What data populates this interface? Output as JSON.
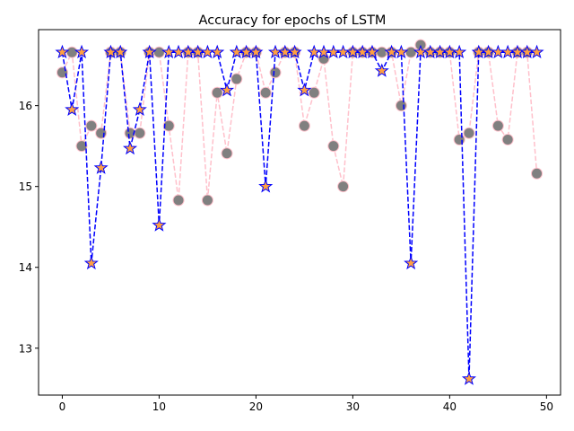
{
  "chart_data": {
    "type": "line",
    "title": "Accuracy for epochs of LSTM",
    "xlabel": "",
    "ylabel": "",
    "xlim": [
      -2.45,
      51.45
    ],
    "ylim": [
      12.42,
      16.94
    ],
    "xticks": [
      0,
      10,
      20,
      30,
      40,
      50
    ],
    "yticks": [
      13,
      14,
      15,
      16
    ],
    "grid": false,
    "legend": "none",
    "series": [
      {
        "style": "dashed-circle",
        "line_color": "#ffc0cb",
        "marker_face": "#808080",
        "marker_edge": "#ffc0cb",
        "x": [
          0,
          1,
          2,
          3,
          4,
          5,
          6,
          7,
          8,
          9,
          10,
          11,
          12,
          13,
          14,
          15,
          16,
          17,
          18,
          19,
          20,
          21,
          22,
          23,
          24,
          25,
          26,
          27,
          28,
          29,
          30,
          31,
          32,
          33,
          34,
          35,
          36,
          37,
          38,
          39,
          40,
          41,
          42,
          43,
          44,
          45,
          46,
          47,
          48,
          49
        ],
        "values": [
          16.41,
          16.66,
          15.5,
          15.75,
          15.66,
          16.66,
          16.66,
          15.66,
          15.66,
          16.66,
          16.66,
          15.75,
          14.83,
          16.66,
          16.66,
          14.83,
          16.16,
          15.41,
          16.33,
          16.66,
          16.66,
          16.16,
          16.41,
          16.66,
          16.66,
          15.75,
          16.16,
          16.58,
          15.5,
          15.0,
          16.66,
          16.66,
          16.66,
          16.66,
          16.66,
          16.0,
          16.66,
          16.75,
          16.66,
          16.66,
          16.66,
          15.58,
          15.66,
          16.66,
          16.66,
          15.75,
          15.58,
          16.66,
          16.66,
          15.16
        ]
      },
      {
        "style": "dashed-star",
        "line_color": "#0000ff",
        "marker_face": "#ffa040",
        "marker_edge": "#0000ff",
        "x": [
          0,
          1,
          2,
          3,
          4,
          5,
          6,
          7,
          8,
          9,
          10,
          11,
          12,
          13,
          14,
          15,
          16,
          17,
          18,
          19,
          20,
          21,
          22,
          23,
          24,
          25,
          26,
          27,
          28,
          29,
          30,
          31,
          32,
          33,
          34,
          35,
          36,
          37,
          38,
          39,
          40,
          41,
          42,
          43,
          44,
          45,
          46,
          47,
          48,
          49
        ],
        "values": [
          16.66,
          15.95,
          16.66,
          14.05,
          15.23,
          16.66,
          16.66,
          15.47,
          15.95,
          16.66,
          14.52,
          16.66,
          16.66,
          16.66,
          16.66,
          16.66,
          16.66,
          16.19,
          16.66,
          16.66,
          16.66,
          15.0,
          16.66,
          16.66,
          16.66,
          16.19,
          16.66,
          16.66,
          16.66,
          16.66,
          16.66,
          16.66,
          16.66,
          16.43,
          16.66,
          16.66,
          14.05,
          16.66,
          16.66,
          16.66,
          16.66,
          16.66,
          12.62,
          16.66,
          16.66,
          16.66,
          16.66,
          16.66,
          16.66,
          16.66
        ]
      }
    ]
  }
}
